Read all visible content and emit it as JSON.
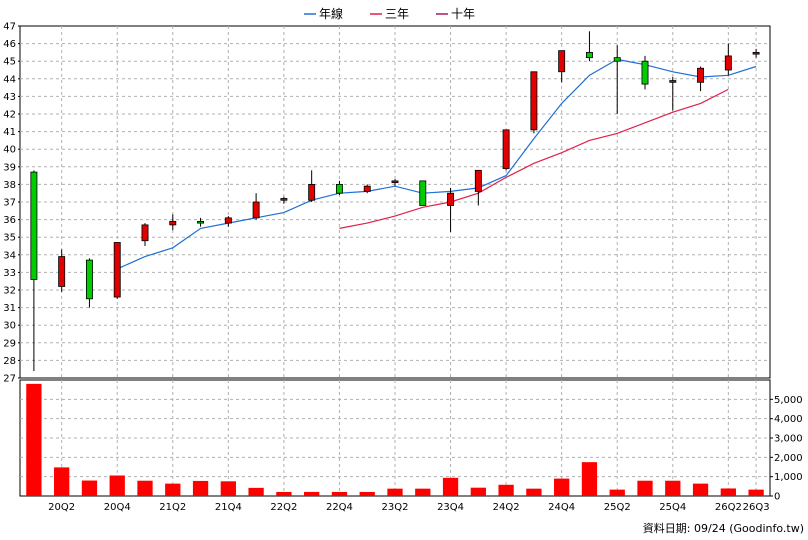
{
  "legend": [
    {
      "label": "年線",
      "color": "#1f6fd6"
    },
    {
      "label": "三年",
      "color": "#e0204a"
    },
    {
      "label": "十年",
      "color": "#a0205a"
    }
  ],
  "source_label": "資料日期: 09/24  (Goodinfo.tw)",
  "colors": {
    "up": "#e00000",
    "down": "#00cc00",
    "volume": "#ff0000",
    "grid": "#b0b0b0"
  },
  "chart_data": {
    "type": "candlestick",
    "quarters": [
      "20Q1",
      "20Q2",
      "20Q3",
      "20Q4",
      "21Q1",
      "21Q2",
      "21Q3",
      "21Q4",
      "22Q1",
      "22Q2",
      "22Q3",
      "22Q4",
      "23Q1",
      "23Q2",
      "23Q3",
      "23Q4",
      "24Q1",
      "24Q2",
      "24Q3",
      "24Q4",
      "25Q1",
      "25Q2",
      "25Q3",
      "25Q4",
      "26Q1",
      "26Q2",
      "26Q3"
    ],
    "x_tick_labels": [
      "20Q2",
      "20Q4",
      "21Q2",
      "21Q4",
      "22Q2",
      "22Q4",
      "23Q2",
      "23Q4",
      "24Q2",
      "24Q4",
      "25Q2",
      "25Q4",
      "26Q2",
      "26Q3"
    ],
    "price_axis": {
      "min": 27,
      "max": 47,
      "ticks": [
        27,
        28,
        29,
        30,
        31,
        32,
        33,
        34,
        35,
        36,
        37,
        38,
        39,
        40,
        41,
        42,
        43,
        44,
        45,
        46,
        47
      ]
    },
    "volume_axis": {
      "min": 0,
      "max": 6000,
      "ticks": [
        0,
        1000,
        2000,
        3000,
        4000,
        5000
      ],
      "tick_labels": [
        "0",
        "1,000",
        "2,000",
        "3,000",
        "4,000",
        "5,000"
      ]
    },
    "candles": [
      {
        "o": 38.7,
        "h": 38.8,
        "l": 27.4,
        "c": 32.6
      },
      {
        "o": 32.2,
        "h": 34.3,
        "l": 31.9,
        "c": 33.9
      },
      {
        "o": 33.7,
        "h": 33.8,
        "l": 31.0,
        "c": 31.5
      },
      {
        "o": 31.6,
        "h": 34.7,
        "l": 31.5,
        "c": 34.7
      },
      {
        "o": 34.8,
        "h": 35.8,
        "l": 34.5,
        "c": 35.7
      },
      {
        "o": 35.7,
        "h": 36.3,
        "l": 35.4,
        "c": 35.9
      },
      {
        "o": 35.9,
        "h": 36.1,
        "l": 35.6,
        "c": 35.8
      },
      {
        "o": 35.8,
        "h": 36.2,
        "l": 35.6,
        "c": 36.1
      },
      {
        "o": 36.1,
        "h": 37.5,
        "l": 36.0,
        "c": 37.0
      },
      {
        "o": 37.1,
        "h": 37.3,
        "l": 36.9,
        "c": 37.2
      },
      {
        "o": 37.1,
        "h": 38.8,
        "l": 37.0,
        "c": 38.0
      },
      {
        "o": 38.0,
        "h": 38.2,
        "l": 37.4,
        "c": 37.5
      },
      {
        "o": 37.6,
        "h": 38.0,
        "l": 37.5,
        "c": 37.9
      },
      {
        "o": 38.1,
        "h": 38.3,
        "l": 37.9,
        "c": 38.2
      },
      {
        "o": 38.2,
        "h": 38.2,
        "l": 36.8,
        "c": 36.8
      },
      {
        "o": 36.8,
        "h": 37.8,
        "l": 35.3,
        "c": 37.5
      },
      {
        "o": 37.6,
        "h": 38.8,
        "l": 36.8,
        "c": 38.8
      },
      {
        "o": 38.9,
        "h": 41.1,
        "l": 38.8,
        "c": 41.1
      },
      {
        "o": 41.1,
        "h": 44.4,
        "l": 40.9,
        "c": 44.4
      },
      {
        "o": 44.4,
        "h": 45.6,
        "l": 43.8,
        "c": 45.6
      },
      {
        "o": 45.5,
        "h": 46.7,
        "l": 45.0,
        "c": 45.2
      },
      {
        "o": 45.2,
        "h": 45.9,
        "l": 42.0,
        "c": 45.0
      },
      {
        "o": 45.0,
        "h": 45.3,
        "l": 43.4,
        "c": 43.7
      },
      {
        "o": 43.8,
        "h": 44.1,
        "l": 42.2,
        "c": 43.9
      },
      {
        "o": 43.8,
        "h": 44.7,
        "l": 43.3,
        "c": 44.6
      },
      {
        "o": 44.5,
        "h": 46.0,
        "l": 44.2,
        "c": 45.3
      },
      {
        "o": 45.4,
        "h": 45.7,
        "l": 45.2,
        "c": 45.5
      }
    ],
    "volume": [
      5800,
      1480,
      800,
      1060,
      790,
      640,
      780,
      760,
      420,
      210,
      210,
      210,
      210,
      380,
      380,
      940,
      430,
      580,
      380,
      900,
      1750,
      330,
      790,
      790,
      640,
      390,
      330
    ],
    "series": [
      {
        "name": "年線",
        "start_index": 3,
        "values": [
          33.2,
          33.9,
          34.4,
          35.5,
          35.8,
          36.1,
          36.4,
          37.1,
          37.5,
          37.6,
          37.9,
          37.5,
          37.6,
          37.8,
          38.5,
          40.6,
          42.6,
          44.2,
          45.1,
          44.8,
          44.4,
          44.1,
          44.2,
          44.7
        ]
      },
      {
        "name": "三年",
        "start_index": 11,
        "values": [
          35.5,
          35.8,
          36.2,
          36.7,
          37.0,
          37.5,
          38.4,
          39.2,
          39.8,
          40.5,
          40.9,
          41.5,
          42.1,
          42.6,
          43.4
        ]
      }
    ]
  }
}
